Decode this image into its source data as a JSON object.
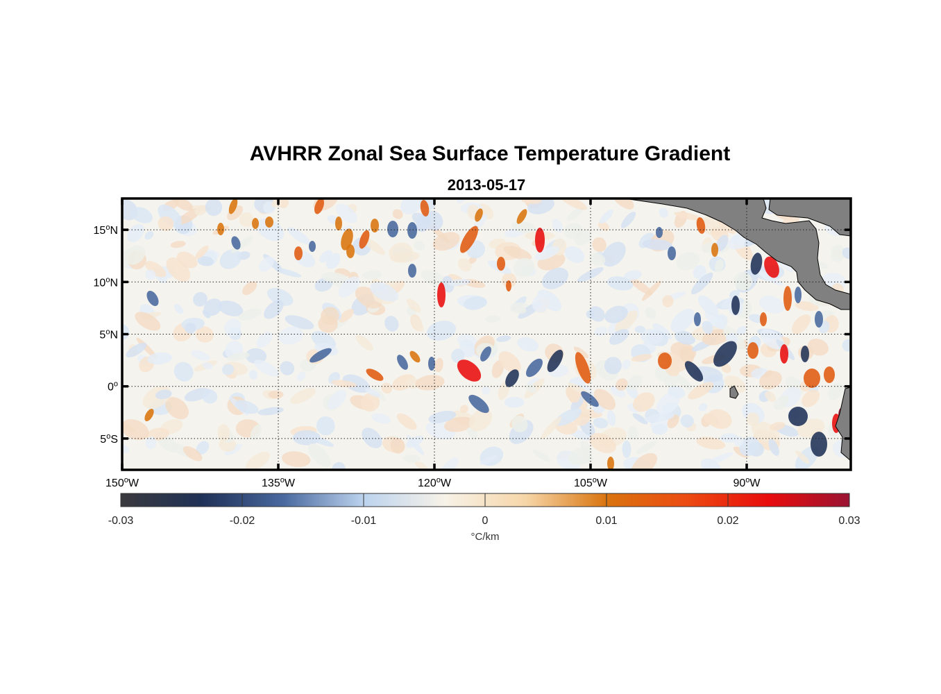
{
  "title": "AVHRR Zonal Sea Surface Temperature Gradient",
  "subtitle": "2013-05-17",
  "map": {
    "lon_range": [
      -150,
      -80
    ],
    "lat_range": [
      -8,
      18
    ],
    "grid": true,
    "land_color": "#808080",
    "lat_ticks": [
      {
        "value": 15,
        "num": "15",
        "hemi": "N"
      },
      {
        "value": 10,
        "num": "10",
        "hemi": "N"
      },
      {
        "value": 5,
        "num": "5",
        "hemi": "N"
      },
      {
        "value": 0,
        "num": "0",
        "hemi": ""
      },
      {
        "value": -5,
        "num": "5",
        "hemi": "S"
      }
    ],
    "lon_ticks": [
      {
        "value": -150,
        "num": "150",
        "hemi": "W"
      },
      {
        "value": -135,
        "num": "135",
        "hemi": "W"
      },
      {
        "value": -120,
        "num": "120",
        "hemi": "W"
      },
      {
        "value": -105,
        "num": "105",
        "hemi": "W"
      },
      {
        "value": -90,
        "num": "90",
        "hemi": "W"
      }
    ]
  },
  "colorbar": {
    "min": -0.03,
    "max": 0.03,
    "ticks": [
      "-0.03",
      "-0.02",
      "-0.01",
      "0",
      "0.01",
      "0.02",
      "0.03"
    ],
    "label": "°C/km",
    "colors": [
      "#3a3a3e",
      "#1f3157",
      "#48689e",
      "#bcd3ee",
      "#f7f2e8",
      "#f6d6a8",
      "#d9740e",
      "#ec4a12",
      "#e80c0c",
      "#9a1433"
    ]
  }
}
